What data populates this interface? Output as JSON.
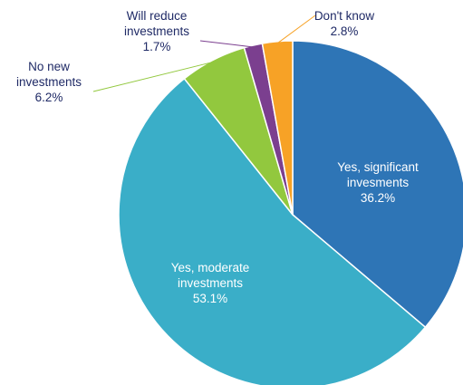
{
  "chart_data": {
    "type": "pie",
    "title": "",
    "legend": "none",
    "slices": [
      {
        "lines": [
          "Yes, significant",
          "invesments"
        ],
        "value": 36.2,
        "value_label": "36.2%",
        "color": "#2e75b6"
      },
      {
        "lines": [
          "Yes, moderate",
          "investments"
        ],
        "value": 53.1,
        "value_label": "53.1%",
        "color": "#3aaec8"
      },
      {
        "lines": [
          "No new",
          "investments"
        ],
        "value": 6.2,
        "value_label": "6.2%",
        "color": "#92c83e"
      },
      {
        "lines": [
          "Will reduce",
          "investments"
        ],
        "value": 1.7,
        "value_label": "1.7%",
        "color": "#7b3f8f"
      },
      {
        "lines": [
          "Don't know"
        ],
        "value": 2.8,
        "value_label": "2.8%",
        "color": "#f7a226"
      }
    ]
  }
}
